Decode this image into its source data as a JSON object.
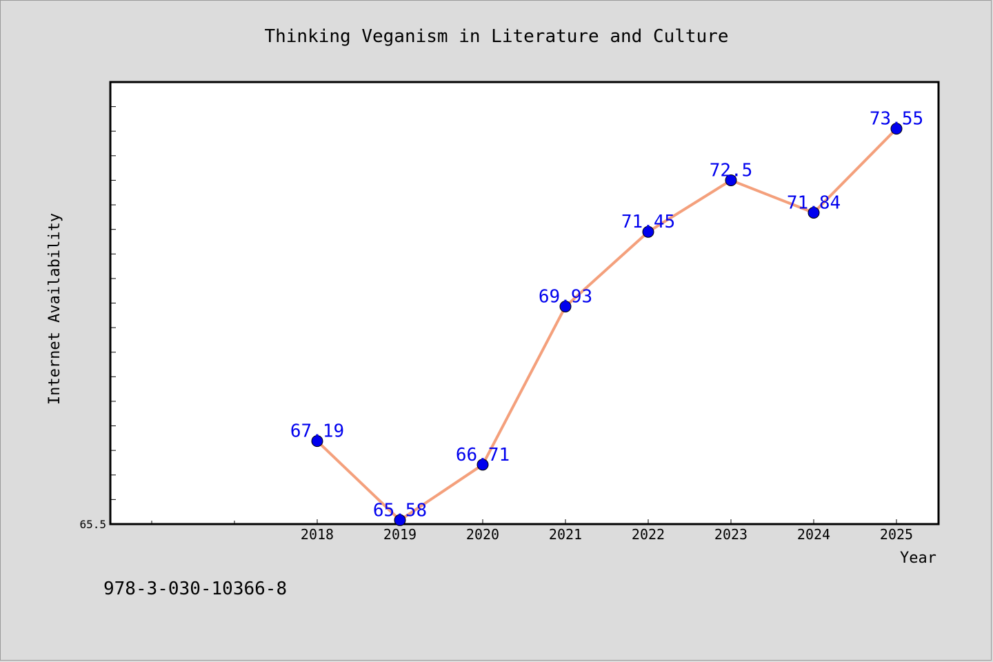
{
  "chart_data": {
    "type": "line",
    "title": "Thinking Veganism in Literature and Culture",
    "xlabel": "Year",
    "ylabel": "Internet Availability",
    "x": [
      "2018",
      "2019",
      "2020",
      "2021",
      "2022",
      "2023",
      "2024",
      "2025"
    ],
    "series": [
      {
        "values": [
          67.19,
          65.58,
          66.71,
          69.93,
          71.45,
          72.5,
          71.84,
          73.55
        ]
      }
    ],
    "data_labels": [
      "67.19",
      "65.58",
      "66.71",
      "69.93",
      "71.45",
      "72.5",
      "71.84",
      "73.55"
    ],
    "y_tick_labels": [
      "65.5"
    ],
    "ylim": [
      65.5,
      74.5
    ],
    "grid": false,
    "colors": {
      "line": "#f4a07c",
      "marker": "#0000ee",
      "label": "#0000ee",
      "background": "#dcdcdc",
      "plot_bg": "#ffffff"
    }
  },
  "footer": {
    "text": "978-3-030-10366-8"
  }
}
